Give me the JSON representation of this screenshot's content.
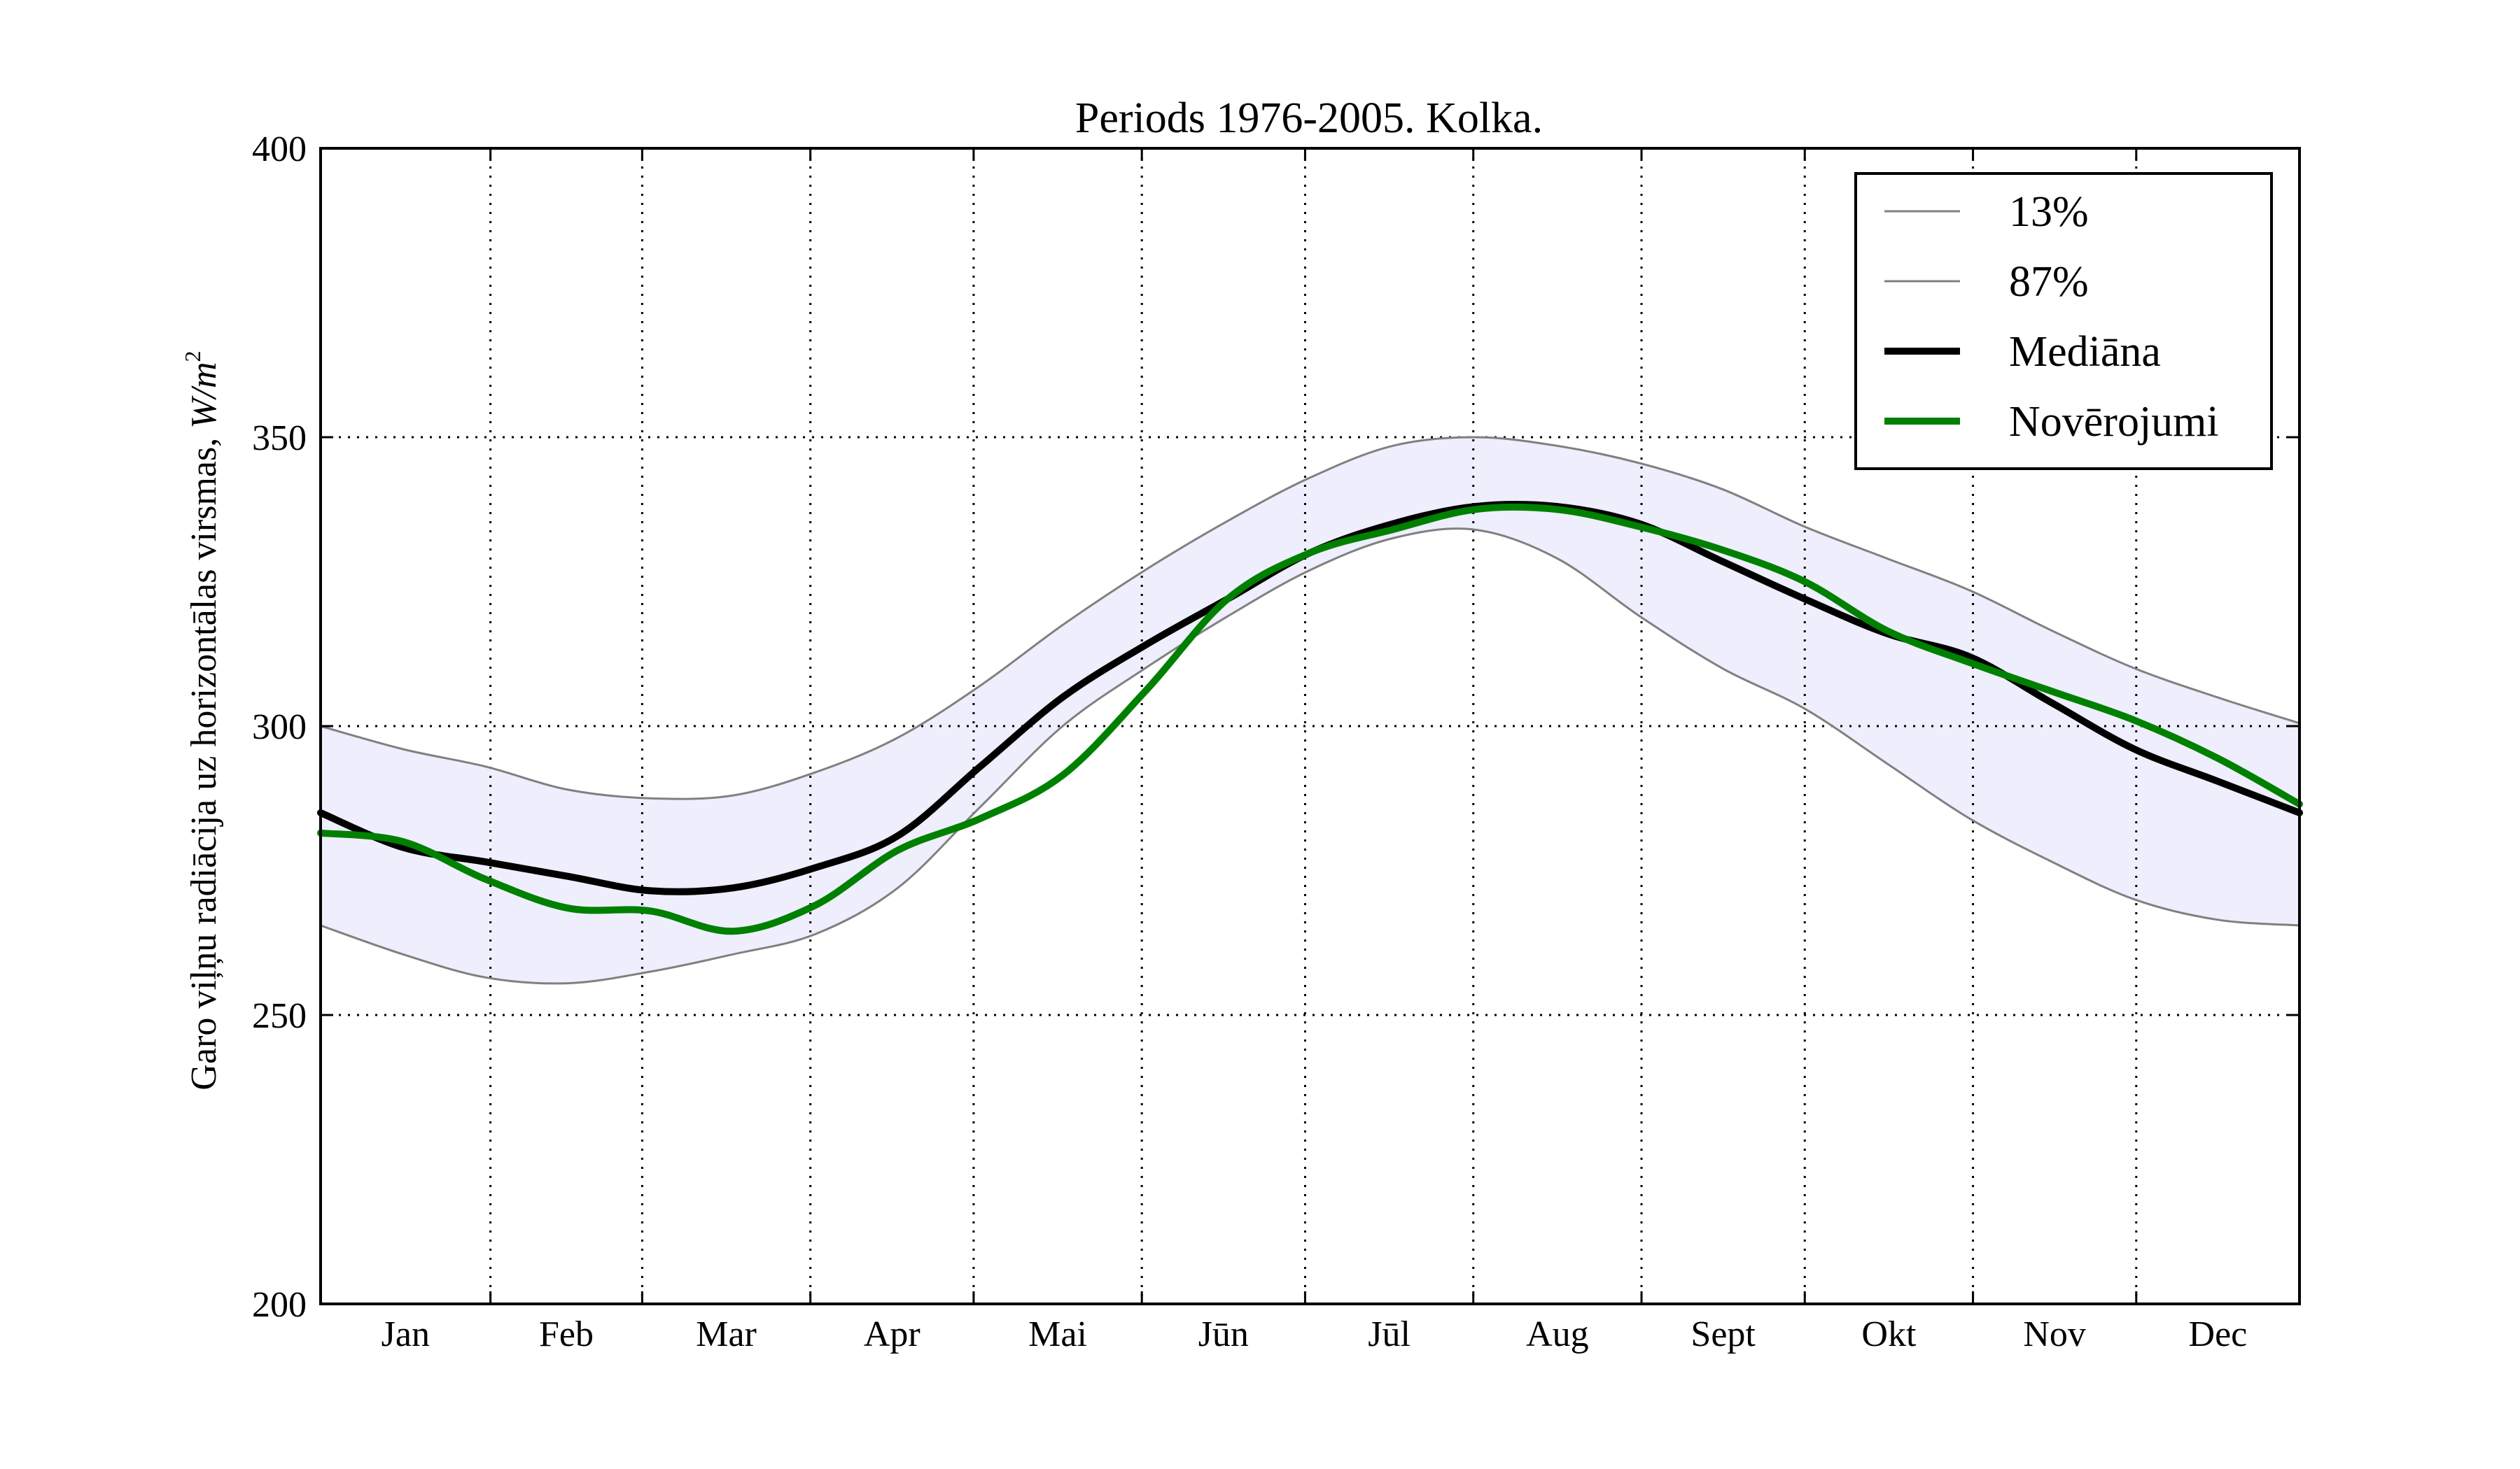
{
  "chart_data": {
    "type": "line",
    "title": "Periods 1976-2005. Kolka.",
    "ylabel": "Garo viļņu radiācija uz horizontālas virsmas, ",
    "ylabel_unit": "W/m",
    "ylabel_unit_exp": "2",
    "ylim": [
      200,
      400
    ],
    "xlim": [
      0,
      12
    ],
    "yticks": [
      200,
      250,
      300,
      350,
      400
    ],
    "categories": [
      "Jan",
      "Feb",
      "Mar",
      "Apr",
      "Mai",
      "Jūn",
      "Jūl",
      "Aug",
      "Sept",
      "Okt",
      "Nov",
      "Dec"
    ],
    "month_boundaries": [
      1.03,
      1.95,
      2.97,
      3.96,
      4.98,
      5.97,
      6.99,
      8.01,
      9.0,
      10.02,
      11.01
    ],
    "grid": true,
    "legend_position": "top-right",
    "band": {
      "between": [
        "13%",
        "87%"
      ],
      "color": "#eeeefc"
    },
    "series": [
      {
        "name": "13%",
        "color": "#808080",
        "width": 3,
        "x": [
          0,
          0.5,
          1.0,
          1.5,
          2.0,
          2.5,
          3.0,
          3.5,
          4.0,
          4.5,
          5.0,
          5.5,
          6.0,
          6.5,
          7.0,
          7.5,
          8.0,
          8.5,
          9.0,
          9.5,
          10.0,
          10.5,
          11.0,
          11.5,
          12.0
        ],
        "values": [
          265.5,
          260.5,
          256.5,
          255.5,
          257.5,
          260.5,
          264,
          272,
          286,
          300,
          310,
          319,
          327,
          332.5,
          334,
          329,
          319,
          310,
          303,
          293.5,
          284,
          276.5,
          270,
          266.5,
          265.5
        ]
      },
      {
        "name": "87%",
        "color": "#808080",
        "width": 3,
        "x": [
          0,
          0.5,
          1.0,
          1.5,
          2.0,
          2.5,
          3.0,
          3.5,
          4.0,
          4.5,
          5.0,
          5.5,
          6.0,
          6.5,
          7.0,
          7.5,
          8.0,
          8.5,
          9.0,
          9.5,
          10.0,
          10.5,
          11.0,
          11.5,
          12.0
        ],
        "values": [
          300,
          296,
          293,
          289,
          287.5,
          288,
          292,
          298,
          307,
          317.5,
          327,
          335.5,
          343,
          348.5,
          350,
          348.5,
          345.5,
          341,
          334.5,
          329,
          323.5,
          316.5,
          310,
          305,
          300.5
        ]
      },
      {
        "name": "Mediāna",
        "color": "#000000",
        "width": 10,
        "x": [
          0,
          0.5,
          1.0,
          1.5,
          2.0,
          2.5,
          3.0,
          3.5,
          4.0,
          4.5,
          5.0,
          5.5,
          6.0,
          6.5,
          7.0,
          7.5,
          8.0,
          8.5,
          9.0,
          9.5,
          10.0,
          10.5,
          11.0,
          11.5,
          12.0
        ],
        "values": [
          285,
          279,
          276.5,
          274,
          271.5,
          272,
          275.5,
          281,
          293,
          305,
          314,
          322,
          330,
          335,
          338,
          338,
          335,
          328.5,
          322,
          316,
          312,
          304,
          296,
          290.5,
          285
        ]
      },
      {
        "name": "Novērojumi",
        "color": "#008000",
        "width": 10,
        "x": [
          0,
          0.5,
          1.0,
          1.5,
          2.0,
          2.5,
          3.0,
          3.5,
          4.0,
          4.5,
          5.0,
          5.5,
          6.0,
          6.5,
          7.0,
          7.5,
          8.0,
          8.5,
          9.0,
          9.5,
          10.0,
          10.5,
          11.0,
          11.5,
          12.0
        ],
        "values": [
          281.5,
          280,
          273.5,
          268.5,
          268,
          264.5,
          269,
          278.5,
          284,
          291.5,
          306,
          322,
          330,
          334,
          337.5,
          337.5,
          334.5,
          330.5,
          325,
          316.5,
          311,
          306,
          301,
          294.5,
          286.5
        ]
      }
    ]
  }
}
